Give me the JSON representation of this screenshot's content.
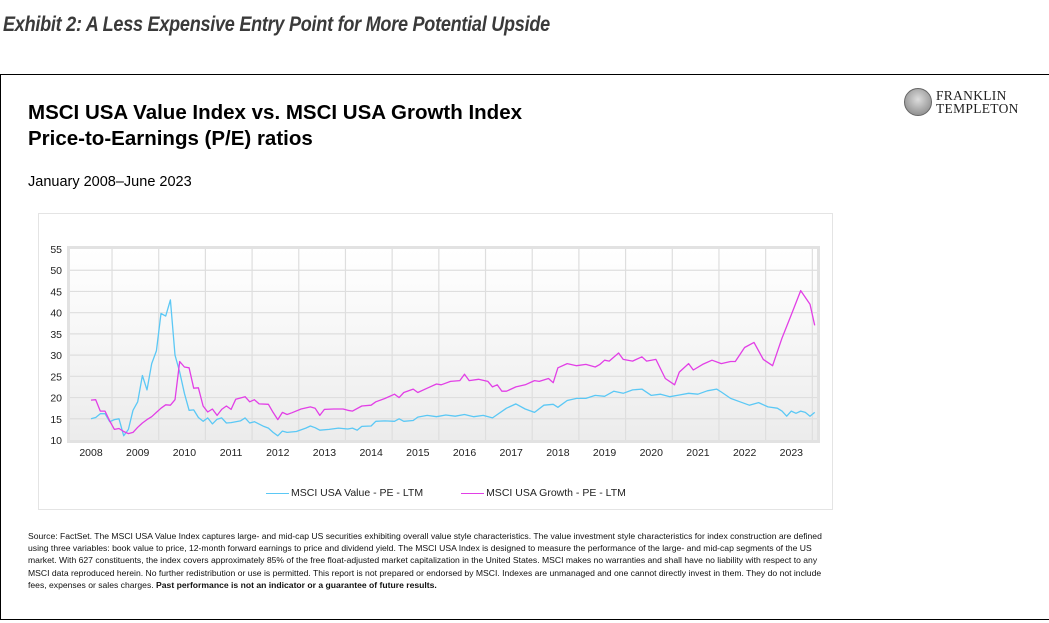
{
  "exhibit": {
    "title": "Exhibit 2: A Less Expensive Entry Point for More Potential Upside"
  },
  "logo": {
    "line1": "FRANKLIN",
    "line2": "TEMPLETON",
    "icon": "franklin-medallion-icon"
  },
  "header": {
    "title_line1": "MSCI USA Value Index vs. MSCI USA Growth Index",
    "title_line2": "Price-to-Earnings (P/E) ratios",
    "subtitle": "January 2008–June 2023"
  },
  "source": {
    "text": "Source: FactSet. The MSCI USA Value Index captures large- and mid-cap US securities exhibiting overall value style characteristics. The value investment style characteristics for index construction are defined using three variables: book value to price, 12-month forward earnings to price and dividend yield. The MSCI USA Index is designed to measure the performance of the large- and mid-cap segments of the US market. With 627 constituents, the index covers approximately 85% of the free float-adjusted market capitalization in the United States. MSCI makes no warranties and shall have no liability with respect to any MSCI data reproduced herein. No further redistribution or use is permitted. This report is not prepared or endorsed by MSCI. Indexes are unmanaged and one cannot directly invest in them. They do not include fees, expenses or sales charges. ",
    "bold_text": "Past performance is not an indicator or a guarantee of future results."
  },
  "chart_data": {
    "type": "line",
    "title": "MSCI USA Value Index vs. MSCI USA Growth Index Price-to-Earnings (P/E) ratios",
    "subtitle": "January 2008–June 2023",
    "xlabel": "",
    "ylabel": "",
    "ylim": [
      10,
      55
    ],
    "yticks": [
      10,
      15,
      20,
      25,
      30,
      35,
      40,
      45,
      50,
      55
    ],
    "xlim": [
      2007.55,
      2023.55
    ],
    "xticks": [
      2008,
      2009,
      2010,
      2011,
      2012,
      2013,
      2014,
      2015,
      2016,
      2017,
      2018,
      2019,
      2020,
      2021,
      2022,
      2023
    ],
    "grid": true,
    "legend_position": "bottom-center",
    "series": [
      {
        "name": "MSCI USA Value - PE - LTM",
        "color": "#5bc8f5",
        "points": [
          [
            2008.0,
            15.0
          ],
          [
            2008.1,
            15.3
          ],
          [
            2008.2,
            16.2
          ],
          [
            2008.3,
            16.2
          ],
          [
            2008.4,
            14.3
          ],
          [
            2008.5,
            14.8
          ],
          [
            2008.6,
            15.0
          ],
          [
            2008.7,
            11.0
          ],
          [
            2008.8,
            12.5
          ],
          [
            2008.9,
            17.0
          ],
          [
            2009.0,
            19.0
          ],
          [
            2009.1,
            25.2
          ],
          [
            2009.2,
            21.8
          ],
          [
            2009.3,
            28.0
          ],
          [
            2009.4,
            31.0
          ],
          [
            2009.5,
            39.8
          ],
          [
            2009.6,
            39.2
          ],
          [
            2009.7,
            43.0
          ],
          [
            2009.8,
            30.0
          ],
          [
            2009.9,
            26.0
          ],
          [
            2010.0,
            21.0
          ],
          [
            2010.1,
            17.0
          ],
          [
            2010.2,
            17.1
          ],
          [
            2010.3,
            15.3
          ],
          [
            2010.4,
            14.4
          ],
          [
            2010.5,
            15.2
          ],
          [
            2010.6,
            13.8
          ],
          [
            2010.7,
            14.9
          ],
          [
            2010.8,
            15.2
          ],
          [
            2010.9,
            14.0
          ],
          [
            2011.0,
            14.1
          ],
          [
            2011.2,
            14.5
          ],
          [
            2011.3,
            15.2
          ],
          [
            2011.4,
            14.0
          ],
          [
            2011.5,
            14.3
          ],
          [
            2011.7,
            13.2
          ],
          [
            2011.8,
            12.8
          ],
          [
            2011.9,
            11.8
          ],
          [
            2012.0,
            11.0
          ],
          [
            2012.1,
            12.1
          ],
          [
            2012.2,
            11.8
          ],
          [
            2012.4,
            12.0
          ],
          [
            2012.6,
            12.8
          ],
          [
            2012.7,
            13.3
          ],
          [
            2012.8,
            12.9
          ],
          [
            2012.9,
            12.3
          ],
          [
            2013.1,
            12.5
          ],
          [
            2013.3,
            12.8
          ],
          [
            2013.5,
            12.6
          ],
          [
            2013.6,
            12.8
          ],
          [
            2013.7,
            12.3
          ],
          [
            2013.8,
            13.2
          ],
          [
            2014.0,
            13.3
          ],
          [
            2014.1,
            14.4
          ],
          [
            2014.3,
            14.5
          ],
          [
            2014.5,
            14.4
          ],
          [
            2014.6,
            15.0
          ],
          [
            2014.7,
            14.4
          ],
          [
            2014.9,
            14.6
          ],
          [
            2015.0,
            15.4
          ],
          [
            2015.2,
            15.8
          ],
          [
            2015.4,
            15.5
          ],
          [
            2015.6,
            15.9
          ],
          [
            2015.8,
            15.6
          ],
          [
            2016.0,
            16.0
          ],
          [
            2016.2,
            15.5
          ],
          [
            2016.4,
            15.8
          ],
          [
            2016.6,
            15.2
          ],
          [
            2016.9,
            17.5
          ],
          [
            2017.1,
            18.5
          ],
          [
            2017.3,
            17.3
          ],
          [
            2017.5,
            16.5
          ],
          [
            2017.7,
            18.2
          ],
          [
            2017.9,
            18.4
          ],
          [
            2018.0,
            17.7
          ],
          [
            2018.2,
            19.3
          ],
          [
            2018.4,
            19.8
          ],
          [
            2018.6,
            19.8
          ],
          [
            2018.8,
            20.5
          ],
          [
            2019.0,
            20.3
          ],
          [
            2019.2,
            21.5
          ],
          [
            2019.4,
            21.0
          ],
          [
            2019.6,
            21.8
          ],
          [
            2019.8,
            22.0
          ],
          [
            2020.0,
            20.5
          ],
          [
            2020.2,
            20.8
          ],
          [
            2020.4,
            20.2
          ],
          [
            2020.6,
            20.6
          ],
          [
            2020.8,
            21.0
          ],
          [
            2021.0,
            20.8
          ],
          [
            2021.2,
            21.6
          ],
          [
            2021.4,
            22.0
          ],
          [
            2021.5,
            21.3
          ],
          [
            2021.7,
            19.8
          ],
          [
            2021.9,
            19.0
          ],
          [
            2022.1,
            18.2
          ],
          [
            2022.3,
            18.8
          ],
          [
            2022.5,
            17.8
          ],
          [
            2022.7,
            17.5
          ],
          [
            2022.8,
            16.8
          ],
          [
            2022.9,
            15.6
          ],
          [
            2023.0,
            16.8
          ],
          [
            2023.1,
            16.3
          ],
          [
            2023.2,
            16.8
          ],
          [
            2023.3,
            16.5
          ],
          [
            2023.4,
            15.6
          ],
          [
            2023.5,
            16.5
          ]
        ]
      },
      {
        "name": "MSCI USA Growth - PE - LTM",
        "color": "#e23fe6",
        "points": [
          [
            2008.0,
            19.4
          ],
          [
            2008.1,
            19.5
          ],
          [
            2008.2,
            16.8
          ],
          [
            2008.3,
            16.8
          ],
          [
            2008.4,
            14.5
          ],
          [
            2008.5,
            12.5
          ],
          [
            2008.6,
            12.7
          ],
          [
            2008.7,
            12.0
          ],
          [
            2008.8,
            11.5
          ],
          [
            2008.9,
            11.8
          ],
          [
            2009.0,
            13.0
          ],
          [
            2009.1,
            14.0
          ],
          [
            2009.2,
            14.8
          ],
          [
            2009.3,
            15.5
          ],
          [
            2009.4,
            16.5
          ],
          [
            2009.5,
            17.5
          ],
          [
            2009.6,
            18.3
          ],
          [
            2009.7,
            18.2
          ],
          [
            2009.8,
            19.5
          ],
          [
            2009.9,
            28.5
          ],
          [
            2010.0,
            27.2
          ],
          [
            2010.1,
            27.0
          ],
          [
            2010.2,
            22.2
          ],
          [
            2010.3,
            22.3
          ],
          [
            2010.4,
            18.0
          ],
          [
            2010.5,
            16.6
          ],
          [
            2010.6,
            17.3
          ],
          [
            2010.7,
            15.8
          ],
          [
            2010.8,
            17.2
          ],
          [
            2010.9,
            18.0
          ],
          [
            2011.0,
            17.2
          ],
          [
            2011.1,
            19.6
          ],
          [
            2011.3,
            20.2
          ],
          [
            2011.4,
            19.0
          ],
          [
            2011.5,
            19.5
          ],
          [
            2011.6,
            18.5
          ],
          [
            2011.8,
            18.4
          ],
          [
            2011.9,
            16.5
          ],
          [
            2012.0,
            14.8
          ],
          [
            2012.1,
            16.5
          ],
          [
            2012.2,
            16.0
          ],
          [
            2012.3,
            16.4
          ],
          [
            2012.5,
            17.3
          ],
          [
            2012.7,
            17.8
          ],
          [
            2012.8,
            17.5
          ],
          [
            2012.9,
            15.8
          ],
          [
            2013.0,
            17.2
          ],
          [
            2013.2,
            17.3
          ],
          [
            2013.4,
            17.3
          ],
          [
            2013.5,
            17.0
          ],
          [
            2013.6,
            16.8
          ],
          [
            2013.8,
            18.0
          ],
          [
            2014.0,
            18.2
          ],
          [
            2014.1,
            19.0
          ],
          [
            2014.3,
            19.8
          ],
          [
            2014.5,
            20.8
          ],
          [
            2014.6,
            20.0
          ],
          [
            2014.7,
            21.2
          ],
          [
            2014.9,
            22.0
          ],
          [
            2015.0,
            21.2
          ],
          [
            2015.2,
            22.2
          ],
          [
            2015.4,
            23.2
          ],
          [
            2015.5,
            23.0
          ],
          [
            2015.7,
            23.8
          ],
          [
            2015.9,
            24.0
          ],
          [
            2016.0,
            25.5
          ],
          [
            2016.1,
            24.0
          ],
          [
            2016.3,
            24.3
          ],
          [
            2016.5,
            23.8
          ],
          [
            2016.6,
            22.5
          ],
          [
            2016.7,
            23.0
          ],
          [
            2016.8,
            21.5
          ],
          [
            2016.9,
            21.5
          ],
          [
            2017.1,
            22.5
          ],
          [
            2017.3,
            23.0
          ],
          [
            2017.5,
            24.0
          ],
          [
            2017.6,
            23.8
          ],
          [
            2017.8,
            24.5
          ],
          [
            2017.9,
            23.5
          ],
          [
            2018.0,
            27.0
          ],
          [
            2018.2,
            28.0
          ],
          [
            2018.4,
            27.5
          ],
          [
            2018.6,
            27.8
          ],
          [
            2018.8,
            27.2
          ],
          [
            2018.9,
            27.8
          ],
          [
            2019.0,
            28.8
          ],
          [
            2019.1,
            28.6
          ],
          [
            2019.3,
            30.5
          ],
          [
            2019.4,
            29.0
          ],
          [
            2019.6,
            28.6
          ],
          [
            2019.8,
            29.6
          ],
          [
            2019.9,
            28.6
          ],
          [
            2020.1,
            29.0
          ],
          [
            2020.3,
            24.5
          ],
          [
            2020.5,
            23.0
          ],
          [
            2020.6,
            26.0
          ],
          [
            2020.8,
            28.0
          ],
          [
            2020.9,
            26.5
          ],
          [
            2021.1,
            27.8
          ],
          [
            2021.3,
            28.8
          ],
          [
            2021.5,
            28.0
          ],
          [
            2021.7,
            28.5
          ],
          [
            2021.8,
            28.5
          ],
          [
            2022.0,
            31.8
          ],
          [
            2022.2,
            33.0
          ],
          [
            2022.4,
            29.0
          ],
          [
            2022.6,
            27.5
          ],
          [
            2022.8,
            34.0
          ],
          [
            2023.0,
            39.5
          ],
          [
            2023.2,
            45.2
          ],
          [
            2023.4,
            42.0
          ],
          [
            2023.5,
            37.0
          ]
        ]
      }
    ]
  }
}
